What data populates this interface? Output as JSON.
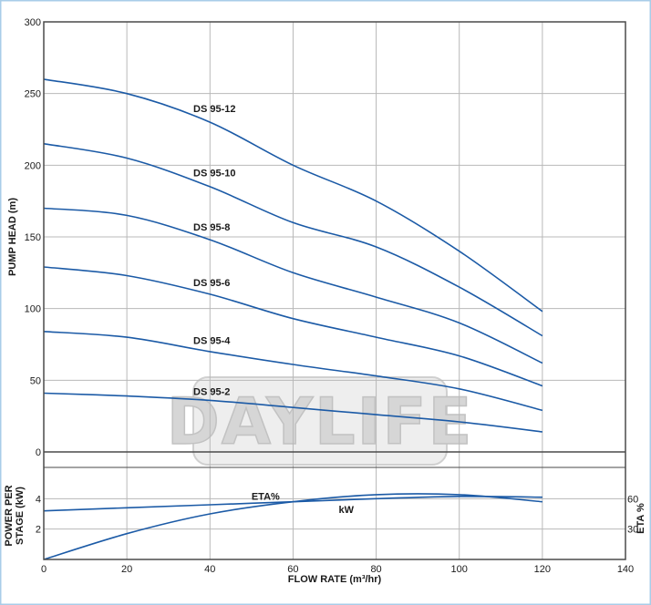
{
  "chart_data": [
    {
      "type": "line",
      "xlabel": "FLOW RATE (m³/hr)",
      "ylabel": "PUMP HEAD (m)",
      "xlim": [
        0,
        140
      ],
      "ylim": [
        0,
        300
      ],
      "x_ticks": [
        "0",
        "20",
        "40",
        "60",
        "80",
        "100",
        "120",
        "140"
      ],
      "y_ticks": [
        "0",
        "50",
        "100",
        "150",
        "200",
        "250",
        "300"
      ],
      "grid": true,
      "colors": {
        "curve": "#1b5aa6",
        "grid": "#b8b8b8",
        "frame": "#4a4a4a"
      },
      "series": [
        {
          "name": "DS 95-12",
          "x": [
            0,
            20,
            40,
            60,
            80,
            100,
            120
          ],
          "y": [
            260,
            250,
            230,
            200,
            175,
            140,
            98
          ]
        },
        {
          "name": "DS 95-10",
          "x": [
            0,
            20,
            40,
            60,
            80,
            100,
            120
          ],
          "y": [
            215,
            205,
            185,
            160,
            143,
            115,
            81
          ]
        },
        {
          "name": "DS 95-8",
          "x": [
            0,
            20,
            40,
            60,
            80,
            100,
            120
          ],
          "y": [
            170,
            165,
            148,
            125,
            108,
            90,
            62
          ]
        },
        {
          "name": "DS 95-6",
          "x": [
            0,
            20,
            40,
            60,
            80,
            100,
            120
          ],
          "y": [
            129,
            123,
            110,
            93,
            80,
            67,
            46
          ]
        },
        {
          "name": "DS 95-4",
          "x": [
            0,
            20,
            40,
            60,
            80,
            100,
            120
          ],
          "y": [
            84,
            80,
            70,
            61,
            53,
            44,
            29
          ]
        },
        {
          "name": "DS 95-2",
          "x": [
            0,
            20,
            40,
            60,
            80,
            100,
            120
          ],
          "y": [
            41,
            39,
            36,
            31,
            26,
            21,
            14
          ]
        }
      ]
    },
    {
      "type": "line",
      "xlabel": "FLOW RATE (m³/hr)",
      "ylabel": "POWER PER STAGE (kW)",
      "y2label": "ETA %",
      "xlim": [
        0,
        140
      ],
      "ylim": [
        0,
        6
      ],
      "y_ticks": [
        "2",
        "4"
      ],
      "y2_ticks": [
        "30",
        "60"
      ],
      "grid": true,
      "series": [
        {
          "name": "kW",
          "axis": "left",
          "x": [
            0,
            20,
            40,
            60,
            80,
            100,
            120
          ],
          "y": [
            3.2,
            3.4,
            3.6,
            3.8,
            4.0,
            4.15,
            4.1
          ]
        },
        {
          "name": "ETA%",
          "axis": "right",
          "x": [
            0,
            20,
            40,
            60,
            80,
            100,
            120
          ],
          "y": [
            0,
            25.5,
            45,
            57,
            64,
            64,
            57
          ]
        }
      ]
    }
  ],
  "watermark": "DAYLIFE"
}
